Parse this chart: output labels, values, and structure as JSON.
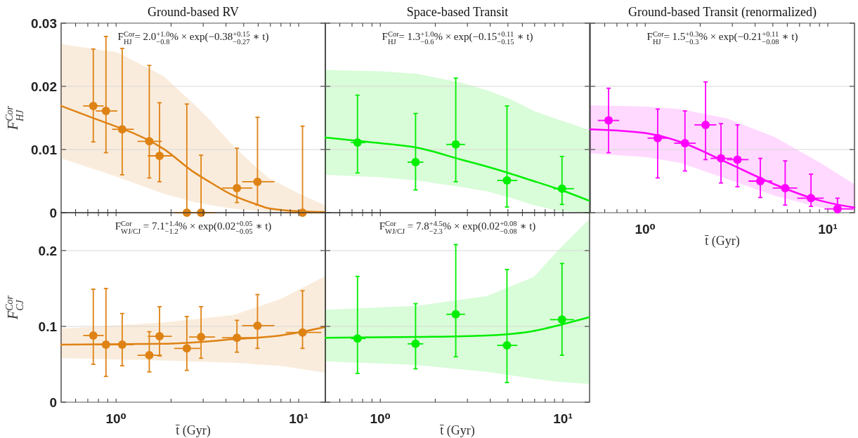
{
  "chart_data": [
    {
      "type": "scatter",
      "title": "Ground-based RV",
      "ylabel": "F$^{Cor}$$_{HJ}$",
      "annotations": [
        "F$^{Cor}$$_{HJ}$ = 2.0$^{+1.0}$$_{−0.8}$% × exp(−0.38$^{+0.15}$$_{−0.27}$ ∗ t)"
      ],
      "log": "x",
      "grid": "y",
      "tick_labels": "y",
      "xlim": [
        0.5,
        14
      ],
      "ylim": [
        0,
        0.03
      ],
      "xticks": [
        {
          "value": 0.6,
          "label": null
        },
        {
          "value": 0.7,
          "label": null
        },
        {
          "value": 0.8,
          "label": null
        },
        {
          "value": 0.9,
          "label": null
        },
        {
          "value": 1,
          "label": null
        },
        {
          "value": 2,
          "label": null
        },
        {
          "value": 3,
          "label": null
        },
        {
          "value": 4,
          "label": null
        },
        {
          "value": 5,
          "label": null
        },
        {
          "value": 6,
          "label": null
        },
        {
          "value": 7,
          "label": null
        },
        {
          "value": 8,
          "label": null
        },
        {
          "value": 9,
          "label": null
        },
        {
          "value": 10,
          "label": null
        }
      ],
      "yticks": [
        0,
        0.01,
        0.02,
        0.03
      ],
      "series": [
        {
          "type": "line",
          "color": "#de8214",
          "x": [
            0.5,
            1.01,
            1.08,
            1.82,
            2.67,
            3.28,
            4.4,
            5.9,
            6.85,
            10.6,
            13.9
          ],
          "values": [
            0.0169,
            0.0136,
            0.0133,
            0.0101,
            0.0064,
            0.0048,
            0.0027,
            0.0013,
            0.0007,
            0.0002,
            0.0001
          ],
          "lower": [
            0.0086,
            0.0057,
            0.0054,
            0.003,
            0.0017,
            0.0012,
            0.0006,
            0.0003,
            0.0002,
            0.0001,
            0
          ],
          "upper": [
            0.0267,
            0.0254,
            0.025,
            0.0216,
            0.0172,
            0.0146,
            0.0105,
            0.0071,
            0.0055,
            0.0027,
            0.0012
          ]
        },
        {
          "marker": "circle",
          "color": "#de8214",
          "x": [
            0.75,
            0.88,
            1.08,
            1.52,
            1.73,
            2.44,
            2.92,
            4.59,
            5.95,
            10.5
          ],
          "values": [
            0.0169,
            0.0161,
            0.0132,
            0.0113,
            0.009,
            0,
            0,
            0.0039,
            0.0049,
            0
          ],
          "errors": [
            [
              0.0112,
              0.0259
            ],
            [
              0.0095,
              0.0279
            ],
            [
              0.006,
              0.026
            ],
            [
              0.0055,
              0.0233
            ],
            [
              0.0049,
              0.0174
            ],
            [
              0,
              0.0172
            ],
            [
              0,
              0.0091
            ],
            [
              0.0016,
              0.0102
            ],
            [
              0.0012,
              0.0151
            ],
            [
              0,
              0.0137
            ]
          ],
          "xerrors": [
            [
              0.66,
              0.855
            ],
            [
              0.774,
              1.015
            ],
            [
              0.95,
              1.25
            ],
            [
              1.31,
              1.78
            ],
            [
              1.49,
              2.02
            ],
            [
              2.08,
              2.9
            ],
            [
              2.5,
              3.48
            ],
            [
              3.81,
              5.57
            ],
            [
              4.9,
              7.36
            ],
            [
              8.5,
              13.3
            ]
          ]
        }
      ]
    },
    {
      "type": "scatter",
      "title": "Space-based Transit",
      "annotations": [
        "F$^{Cor}$$_{HJ}$ = 1.3$^{+1.0}$$_{−0.6}$% × exp(−0.15$^{+0.11}$$_{−0.15}$ ∗ t)"
      ],
      "log": "x",
      "grid": "y",
      "tick_labels": false,
      "xlim": [
        0.5,
        14
      ],
      "ylim": [
        0,
        0.03
      ],
      "xticks": [
        {
          "value": 0.6,
          "label": null
        },
        {
          "value": 0.7,
          "label": null
        },
        {
          "value": 0.8,
          "label": null
        },
        {
          "value": 0.9,
          "label": null
        },
        {
          "value": 1,
          "label": null
        },
        {
          "value": 2,
          "label": null
        },
        {
          "value": 3,
          "label": null
        },
        {
          "value": 4,
          "label": null
        },
        {
          "value": 5,
          "label": null
        },
        {
          "value": 6,
          "label": null
        },
        {
          "value": 7,
          "label": null
        },
        {
          "value": 8,
          "label": null
        },
        {
          "value": 9,
          "label": null
        },
        {
          "value": 10,
          "label": null
        }
      ],
      "yticks": [
        0,
        0.01,
        0.02,
        0.03
      ],
      "series": [
        {
          "type": "line",
          "color": "#00ee00",
          "x": [
            0.5,
            1,
            1.58,
            2.85,
            3.83,
            5.14,
            6.92,
            9.3,
            13.9
          ],
          "values": [
            0.0119,
            0.011,
            0.0103,
            0.0083,
            0.0073,
            0.0062,
            0.005,
            0.0038,
            0.0019
          ],
          "lower": [
            0.006,
            0.0056,
            0.0051,
            0.004,
            0.0034,
            0.0024,
            0.0012,
            0.0003,
            0
          ],
          "upper": [
            0.0226,
            0.0224,
            0.022,
            0.0205,
            0.0194,
            0.018,
            0.0161,
            0.0148,
            0.0131
          ]
        },
        {
          "marker": "circle",
          "color": "#00ee00",
          "x": [
            0.75,
            1.56,
            2.59,
            4.94,
            9.89
          ],
          "values": [
            0.0111,
            0.008,
            0.0108,
            0.0051,
            0.0038
          ],
          "errors": [
            [
              0.0063,
              0.0186
            ],
            [
              0.0036,
              0.0157
            ],
            [
              0.0049,
              0.0213
            ],
            [
              0.0009,
              0.0169
            ],
            [
              0.0013,
              0.0089
            ]
          ],
          "xerrors": [
            [
              0.69,
              0.83
            ],
            [
              1.41,
              1.72
            ],
            [
              2.3,
              2.91
            ],
            [
              4.37,
              5.63
            ],
            [
              8.87,
              11.5
            ]
          ]
        }
      ]
    },
    {
      "type": "scatter",
      "title": "Ground-based Transit (renormalized)",
      "xlabel": "t̄ (Gyr)",
      "annotations": [
        "F$^{Cor}$$_{HJ}$ = 1.5$^{+0.3}$$_{−0.3}$% × exp(−0.21$^{+0.11}$$_{−0.08}$ ∗ t)"
      ],
      "log": "x",
      "grid": "y",
      "tick_labels": "x",
      "xlim": [
        0.5,
        14
      ],
      "ylim": [
        0,
        0.03
      ],
      "xticks": [
        {
          "value": 0.6,
          "label": null
        },
        {
          "value": 0.7,
          "label": null
        },
        {
          "value": 0.8,
          "label": null
        },
        {
          "value": 0.9,
          "label": null
        },
        {
          "value": 1,
          "label": "10⁰"
        },
        {
          "value": 2,
          "label": null
        },
        {
          "value": 3,
          "label": null
        },
        {
          "value": 4,
          "label": null
        },
        {
          "value": 5,
          "label": null
        },
        {
          "value": 6,
          "label": null
        },
        {
          "value": 7,
          "label": null
        },
        {
          "value": 8,
          "label": null
        },
        {
          "value": 9,
          "label": null
        },
        {
          "value": 10,
          "label": "10¹"
        }
      ],
      "yticks": [
        0,
        0.01,
        0.02,
        0.03
      ],
      "series": [
        {
          "type": "line",
          "color": "#ff00ff",
          "x": [
            0.5,
            1,
            1.56,
            2.82,
            5.1,
            9.1,
            14
          ],
          "values": [
            0.0132,
            0.0126,
            0.0112,
            0.0079,
            0.0045,
            0.0019,
            0.0008
          ],
          "lower": [
            0.0094,
            0.0088,
            0.0079,
            0.0053,
            0.0027,
            0.0008,
            0.0003
          ],
          "upper": [
            0.017,
            0.0168,
            0.0164,
            0.0149,
            0.012,
            0.0079,
            0.0045
          ]
        },
        {
          "marker": "circle",
          "color": "#ff00ff",
          "x": [
            0.63,
            1.17,
            1.65,
            2.14,
            2.6,
            3.2,
            4.27,
            5.84,
            8.09,
            11.3
          ],
          "values": [
            0.0146,
            0.0118,
            0.011,
            0.0139,
            0.0086,
            0.0084,
            0.005,
            0.0039,
            0.0023,
            0.0006
          ],
          "errors": [
            [
              0.0095,
              0.0197
            ],
            [
              0.0055,
              0.0164
            ],
            [
              0.0066,
              0.0161
            ],
            [
              0.0084,
              0.0207
            ],
            [
              0.0047,
              0.0141
            ],
            [
              0.0041,
              0.0139
            ],
            [
              0.0024,
              0.0086
            ],
            [
              0.0012,
              0.0082
            ],
            [
              0.001,
              0.0061
            ],
            [
              0,
              0.0023
            ]
          ],
          "xerrors": [
            [
              0.55,
              0.72
            ],
            [
              1.03,
              1.33
            ],
            [
              1.44,
              1.89
            ],
            [
              1.86,
              2.45
            ],
            [
              2.28,
              3
            ],
            [
              2.8,
              3.68
            ],
            [
              3.68,
              4.96
            ],
            [
              5,
              6.8
            ],
            [
              6.8,
              9.5
            ],
            [
              9.6,
              13.8
            ]
          ]
        }
      ]
    },
    {
      "type": "scatter",
      "xlabel": "t̄ (Gyr)",
      "ylabel": "F$^{Cor}$$_{CJ}$",
      "annotations": [
        "F$^{Cor}$$_{WJ/CJ}$ = 7.1$^{+1.4}$$_{−1.2}$% × exp(0.02$^{+0.05}$$_{−0.05}$ ∗ t)"
      ],
      "log": "x",
      "grid": "y",
      "xlim": [
        0.5,
        14
      ],
      "ylim": [
        0,
        0.25
      ],
      "xticks": [
        {
          "value": 0.6,
          "label": null
        },
        {
          "value": 0.7,
          "label": null
        },
        {
          "value": 0.8,
          "label": null
        },
        {
          "value": 0.9,
          "label": null
        },
        {
          "value": 1,
          "label": "10⁰"
        },
        {
          "value": 2,
          "label": null
        },
        {
          "value": 3,
          "label": null
        },
        {
          "value": 4,
          "label": null
        },
        {
          "value": 5,
          "label": null
        },
        {
          "value": 6,
          "label": null
        },
        {
          "value": 7,
          "label": null
        },
        {
          "value": 8,
          "label": null
        },
        {
          "value": 9,
          "label": null
        },
        {
          "value": 10,
          "label": "10¹"
        }
      ],
      "yticks": [
        0,
        0.1,
        0.2
      ],
      "series": [
        {
          "type": "line",
          "color": "#de8214",
          "x": [
            0.5,
            1.82,
            4.4,
            7.95,
            13.9
          ],
          "values": [
            0.076,
            0.077,
            0.083,
            0.088,
            0.099
          ],
          "lower": [
            0.058,
            0.055,
            0.052,
            0.048,
            0.039
          ],
          "upper": [
            0.097,
            0.105,
            0.115,
            0.136,
            0.166
          ]
        },
        {
          "marker": "circle",
          "color": "#de8214",
          "x": [
            0.75,
            0.88,
            1.08,
            1.52,
            1.73,
            2.44,
            2.92,
            4.59,
            5.95,
            10.5
          ],
          "values": [
            0.088,
            0.076,
            0.076,
            0.062,
            0.087,
            0.071,
            0.086,
            0.085,
            0.101,
            0.092
          ],
          "errors": [
            [
              0.05,
              0.149
            ],
            [
              0.034,
              0.15
            ],
            [
              0.048,
              0.117
            ],
            [
              0.04,
              0.093
            ],
            [
              0.061,
              0.126
            ],
            [
              0.042,
              0.113
            ],
            [
              0.058,
              0.126
            ],
            [
              0.066,
              0.108
            ],
            [
              0.071,
              0.142
            ],
            [
              0.071,
              0.147
            ]
          ],
          "xerrors": [
            [
              0.66,
              0.855
            ],
            [
              0.774,
              1.015
            ],
            [
              0.95,
              1.25
            ],
            [
              1.31,
              1.78
            ],
            [
              1.49,
              2.02
            ],
            [
              2.08,
              2.89
            ],
            [
              2.51,
              3.48
            ],
            [
              3.81,
              5.57
            ],
            [
              4.9,
              7.36
            ],
            [
              8.5,
              13.3
            ]
          ]
        }
      ]
    },
    {
      "type": "scatter",
      "xlabel": "t̄ (Gyr)",
      "annotations": [
        "F$^{Cor}$$_{WJ/CJ}$ = 7.8$^{+4.5}$$_{−2.3}$% × exp(0.02$^{+0.08}$$_{−0.08}$ ∗ t)"
      ],
      "log": "x",
      "grid": "y",
      "tick_labels": "x",
      "xlim": [
        0.5,
        14
      ],
      "ylim": [
        0,
        0.25
      ],
      "xticks": [
        {
          "value": 0.6,
          "label": null
        },
        {
          "value": 0.7,
          "label": null
        },
        {
          "value": 0.8,
          "label": null
        },
        {
          "value": 0.9,
          "label": null
        },
        {
          "value": 1,
          "label": "10⁰"
        },
        {
          "value": 2,
          "label": null
        },
        {
          "value": 3,
          "label": null
        },
        {
          "value": 4,
          "label": null
        },
        {
          "value": 5,
          "label": null
        },
        {
          "value": 6,
          "label": null
        },
        {
          "value": 7,
          "label": null
        },
        {
          "value": 8,
          "label": null
        },
        {
          "value": 9,
          "label": null
        },
        {
          "value": 10,
          "label": "10¹"
        }
      ],
      "yticks": [
        0,
        0.1,
        0.2
      ],
      "series": [
        {
          "type": "line",
          "color": "#00ee00",
          "x": [
            0.5,
            1.58,
            3.83,
            6.92,
            9.3,
            13.9
          ],
          "values": [
            0.085,
            0.086,
            0.088,
            0.094,
            0.101,
            0.112
          ],
          "lower": [
            0.054,
            0.049,
            0.04,
            0.031,
            0.027,
            0.024
          ],
          "upper": [
            0.122,
            0.127,
            0.14,
            0.165,
            0.199,
            0.241
          ]
        },
        {
          "marker": "circle",
          "color": "#00ee00",
          "x": [
            0.75,
            1.56,
            2.59,
            4.94,
            9.89
          ],
          "values": [
            0.084,
            0.077,
            0.116,
            0.075,
            0.109
          ],
          "errors": [
            [
              0.038,
              0.166
            ],
            [
              0.044,
              0.13
            ],
            [
              0.06,
              0.208
            ],
            [
              0.026,
              0.175
            ],
            [
              0.062,
              0.183
            ]
          ],
          "xerrors": [
            [
              0.69,
              0.83
            ],
            [
              1.41,
              1.72
            ],
            [
              2.3,
              2.91
            ],
            [
              4.37,
              5.63
            ],
            [
              8.5,
              11.5
            ]
          ]
        }
      ]
    }
  ]
}
